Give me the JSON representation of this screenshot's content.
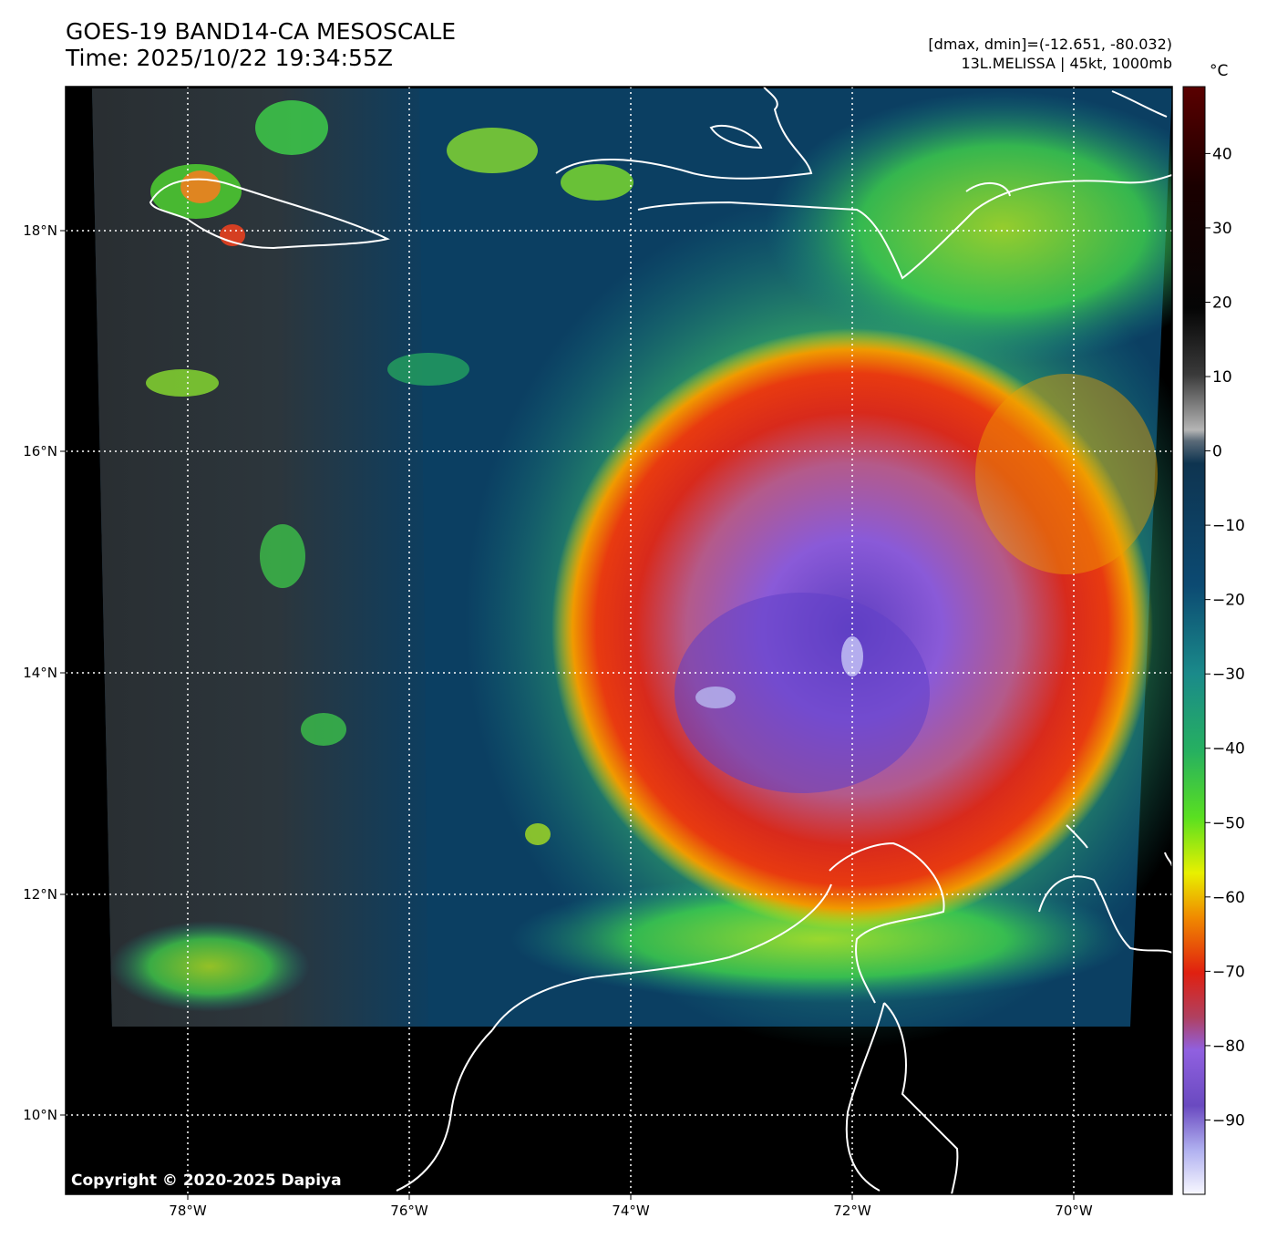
{
  "header": {
    "title_line1": "GOES-19 BAND14-CA MESOSCALE",
    "title_line2": "Time: 2025/10/22 19:34:55Z",
    "stats_line": "[dmax, dmin]=(-12.651, -80.032)",
    "storm_line": "13L.MELISSA | 45kt, 1000mb"
  },
  "map": {
    "copyright": "Copyright © 2020-2025 Dapiya",
    "lon_labels": [
      "78°W",
      "76°W",
      "74°W",
      "72°W",
      "70°W"
    ],
    "lat_labels": [
      "18°N",
      "16°N",
      "14°N",
      "12°N",
      "10°N"
    ],
    "gridline_color": "#ffffff",
    "coastline_color": "#ffffff",
    "no_data_color": "#000000"
  },
  "colorbar": {
    "unit": "°C",
    "ticks": [
      "40",
      "30",
      "20",
      "10",
      "0",
      "−10",
      "−20",
      "−30",
      "−40",
      "−50",
      "−60",
      "−70",
      "−80",
      "−90"
    ],
    "range_max": 49,
    "range_min": -100,
    "colors": {
      "warm_dark_red": "#5a0000",
      "black": "#000000",
      "gray": "#8a8a8a",
      "navy": "#0c3d63",
      "teal": "#1a8a8a",
      "green": "#3fd44a",
      "yellow": "#e8f000",
      "orange": "#f08a00",
      "red": "#e02010",
      "purple": "#8a5ad8",
      "light": "#f4f4ff"
    }
  }
}
